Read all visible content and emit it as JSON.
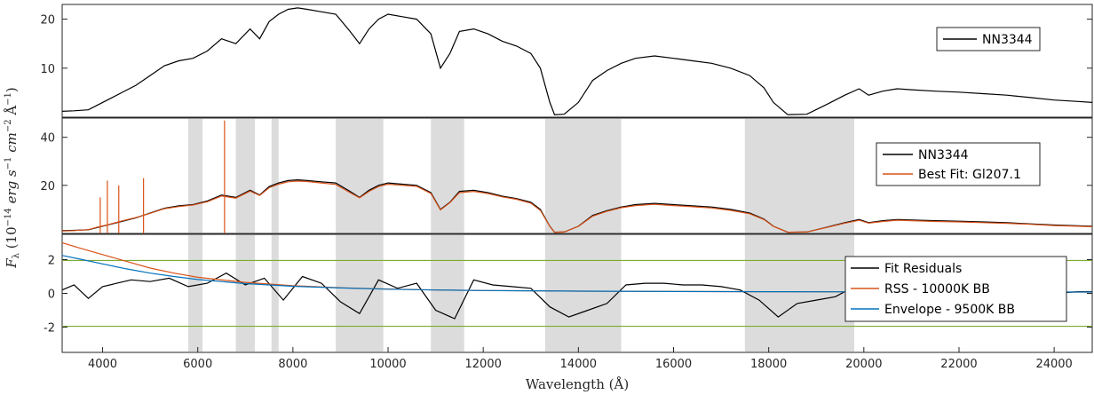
{
  "chart_data": [
    {
      "type": "line",
      "panel": "top",
      "xlim": [
        3150,
        24800
      ],
      "ylim": [
        0,
        23
      ],
      "yticks": [
        10,
        20
      ],
      "series": [
        {
          "name": "NN3344",
          "color": "#000000",
          "x": [
            3150,
            3400,
            3700,
            3900,
            4100,
            4400,
            4700,
            5000,
            5300,
            5600,
            5900,
            6200,
            6500,
            6800,
            7100,
            7300,
            7500,
            7700,
            7900,
            8100,
            8300,
            8600,
            8900,
            9200,
            9400,
            9600,
            9800,
            10000,
            10300,
            10600,
            10900,
            11100,
            11300,
            11500,
            11800,
            12100,
            12400,
            12700,
            13000,
            13200,
            13400,
            13500,
            13700,
            14000,
            14300,
            14600,
            14900,
            15200,
            15600,
            16000,
            16400,
            16800,
            17200,
            17600,
            17900,
            18100,
            18400,
            18800,
            19200,
            19600,
            19900,
            20100,
            20400,
            20700,
            21000,
            21500,
            22000,
            22500,
            23000,
            23500,
            24000,
            24500,
            24800
          ],
          "y": [
            1.2,
            1.3,
            1.5,
            2.5,
            3.5,
            5.0,
            6.5,
            8.5,
            10.5,
            11.5,
            12.0,
            13.5,
            16.0,
            15.0,
            18.0,
            16.0,
            19.5,
            21.0,
            22.0,
            22.3,
            22.0,
            21.5,
            21.0,
            17.5,
            15.0,
            18.0,
            20.0,
            21.0,
            20.5,
            20.0,
            17.0,
            10.0,
            13.0,
            17.5,
            18.0,
            17.0,
            15.5,
            14.5,
            13.0,
            10.0,
            3.0,
            0.5,
            0.6,
            3.0,
            7.5,
            9.5,
            11.0,
            12.0,
            12.5,
            12.0,
            11.5,
            11.0,
            10.0,
            8.5,
            6.0,
            3.0,
            0.5,
            0.6,
            2.5,
            4.5,
            5.8,
            4.5,
            5.3,
            5.8,
            5.6,
            5.3,
            5.1,
            4.8,
            4.5,
            4.0,
            3.5,
            3.2,
            3.0
          ]
        }
      ],
      "legend": {
        "entries": [
          "NN3344"
        ],
        "placement": "top-right"
      }
    },
    {
      "type": "line",
      "panel": "middle",
      "xlim": [
        3150,
        24800
      ],
      "ylim": [
        0,
        48
      ],
      "yticks": [
        20,
        40
      ],
      "ylabel": "F_λ (10^-14 erg s^-1 cm^-2 Å^-1)",
      "series": [
        {
          "name": "NN3344",
          "color": "#000000",
          "x": [
            3150,
            3400,
            3700,
            3900,
            4100,
            4400,
            4700,
            5000,
            5300,
            5600,
            5900,
            6200,
            6500,
            6800,
            7100,
            7300,
            7500,
            7700,
            7900,
            8100,
            8300,
            8600,
            8900,
            9200,
            9400,
            9600,
            9800,
            10000,
            10300,
            10600,
            10900,
            11100,
            11300,
            11500,
            11800,
            12100,
            12400,
            12700,
            13000,
            13200,
            13400,
            13500,
            13700,
            14000,
            14300,
            14600,
            14900,
            15200,
            15600,
            16000,
            16400,
            16800,
            17200,
            17600,
            17900,
            18100,
            18400,
            18800,
            19200,
            19600,
            19900,
            20100,
            20400,
            20700,
            21000,
            21500,
            22000,
            22500,
            23000,
            23500,
            24000,
            24500,
            24800
          ],
          "y": [
            1.2,
            1.3,
            1.5,
            2.5,
            3.5,
            5.0,
            6.5,
            8.5,
            10.5,
            11.5,
            12.0,
            13.5,
            16.0,
            15.0,
            18.0,
            16.0,
            19.5,
            21.0,
            22.0,
            22.3,
            22.0,
            21.5,
            21.0,
            17.5,
            15.0,
            18.0,
            20.0,
            21.0,
            20.5,
            20.0,
            17.0,
            10.0,
            13.0,
            17.5,
            18.0,
            17.0,
            15.5,
            14.5,
            13.0,
            10.0,
            3.0,
            0.5,
            0.6,
            3.0,
            7.5,
            9.5,
            11.0,
            12.0,
            12.5,
            12.0,
            11.5,
            11.0,
            10.0,
            8.5,
            6.0,
            3.0,
            0.5,
            0.6,
            2.5,
            4.5,
            5.8,
            4.5,
            5.3,
            5.8,
            5.6,
            5.3,
            5.1,
            4.8,
            4.5,
            4.0,
            3.5,
            3.2,
            3.0
          ]
        },
        {
          "name": "Best Fit: Gl207.1",
          "color": "#D95319",
          "x": [
            3150,
            3400,
            3700,
            3900,
            4100,
            4400,
            4700,
            5000,
            5300,
            5600,
            5900,
            6200,
            6500,
            6800,
            7100,
            7300,
            7500,
            7700,
            7900,
            8100,
            8300,
            8600,
            8900,
            9200,
            9400,
            9600,
            9800,
            10000,
            10300,
            10600,
            10900,
            11100,
            11300,
            11500,
            11800,
            12100,
            12400,
            12700,
            13000,
            13200,
            13400,
            13500,
            13700,
            14000,
            14300,
            14600,
            14900,
            15200,
            15600,
            16000,
            16400,
            16800,
            17200,
            17600,
            17900,
            18100,
            18400,
            18800,
            19200,
            19600,
            19900,
            20100,
            20400,
            20700,
            21000,
            21500,
            22000,
            22500,
            23000,
            23500,
            24000,
            24500,
            24800
          ],
          "y": [
            1.0,
            1.2,
            1.6,
            2.7,
            3.6,
            5.2,
            6.6,
            8.4,
            10.3,
            11.2,
            11.8,
            13.2,
            15.6,
            14.7,
            17.6,
            15.8,
            19.0,
            20.5,
            21.5,
            21.8,
            21.6,
            21.0,
            20.4,
            17.0,
            14.8,
            17.5,
            19.5,
            20.5,
            20.0,
            19.6,
            16.6,
            9.8,
            12.8,
            17.0,
            17.5,
            16.6,
            15.2,
            14.2,
            12.6,
            9.6,
            2.9,
            0.5,
            0.6,
            2.9,
            7.2,
            9.2,
            10.7,
            11.6,
            12.1,
            11.6,
            11.1,
            10.6,
            9.6,
            8.2,
            5.8,
            2.9,
            0.5,
            0.6,
            2.4,
            4.3,
            5.5,
            4.3,
            5.0,
            5.5,
            5.3,
            5.0,
            4.8,
            4.5,
            4.2,
            3.8,
            3.3,
            3.0,
            2.8
          ]
        }
      ],
      "emission_lines": [
        {
          "x": 3950,
          "y": 15
        },
        {
          "x": 4100,
          "y": 22
        },
        {
          "x": 4340,
          "y": 20
        },
        {
          "x": 4860,
          "y": 23
        },
        {
          "x": 6563,
          "y": 47
        }
      ],
      "legend": {
        "entries": [
          "NN3344",
          "Best Fit: Gl207.1"
        ],
        "placement": "top-right"
      }
    },
    {
      "type": "line",
      "panel": "bottom",
      "xlim": [
        3150,
        24800
      ],
      "ylim": [
        -3.5,
        3.5
      ],
      "yticks": [
        -2,
        0,
        2
      ],
      "xticks": [
        4000,
        6000,
        8000,
        10000,
        12000,
        14000,
        16000,
        18000,
        20000,
        22000,
        24000
      ],
      "xlabel": "Wavelength (Å)",
      "hlines": [
        -1.95,
        1.95
      ],
      "series": [
        {
          "name": "Fit Residuals",
          "color": "#000000",
          "x": [
            3150,
            3400,
            3700,
            4000,
            4300,
            4600,
            5000,
            5400,
            5800,
            6200,
            6600,
            7000,
            7400,
            7800,
            8200,
            8600,
            9000,
            9400,
            9800,
            10200,
            10600,
            11000,
            11400,
            11800,
            12200,
            12600,
            13000,
            13400,
            13800,
            14200,
            14600,
            15000,
            15400,
            15800,
            16200,
            16600,
            17000,
            17400,
            17800,
            18200,
            18600,
            19000,
            19400,
            19800,
            20200,
            20600,
            21000,
            21500,
            22000,
            22500,
            23000,
            23500,
            24000,
            24500,
            24800
          ],
          "y": [
            0.2,
            0.5,
            -0.3,
            0.4,
            0.6,
            0.8,
            0.7,
            0.9,
            0.4,
            0.6,
            1.2,
            0.5,
            0.9,
            -0.4,
            1.0,
            0.6,
            -0.5,
            -1.2,
            0.8,
            0.3,
            0.6,
            -1.0,
            -1.5,
            0.8,
            0.5,
            0.4,
            0.3,
            -0.8,
            -1.4,
            -1.0,
            -0.6,
            0.5,
            0.6,
            0.6,
            0.5,
            0.5,
            0.4,
            0.2,
            -0.4,
            -1.4,
            -0.6,
            -0.4,
            -0.2,
            0.4,
            0.3,
            0.1,
            0.3,
            0.2,
            0.2,
            0.1,
            0.0,
            0.1,
            0.0,
            0.1,
            0.1
          ]
        },
        {
          "name": "RSS - 10000K BB",
          "color": "#D95319",
          "x": [
            3150,
            3500,
            4000,
            4500,
            5000,
            5500,
            6000,
            7000,
            8000,
            9000,
            10000,
            11000,
            12000,
            13000,
            14000,
            16000,
            18000,
            20000,
            22000,
            24000,
            24800
          ],
          "y": [
            3.0,
            2.7,
            2.3,
            1.9,
            1.5,
            1.2,
            0.95,
            0.65,
            0.45,
            0.33,
            0.26,
            0.2,
            0.17,
            0.15,
            0.13,
            0.11,
            0.1,
            0.09,
            0.085,
            0.08,
            0.08
          ]
        },
        {
          "name": "Envelope - 9500K BB",
          "color": "#0072BD",
          "x": [
            3150,
            3500,
            4000,
            4500,
            5000,
            5500,
            6000,
            7000,
            8000,
            9000,
            10000,
            11000,
            12000,
            13000,
            14000,
            16000,
            18000,
            20000,
            22000,
            24000,
            24800
          ],
          "y": [
            2.25,
            2.05,
            1.75,
            1.45,
            1.2,
            1.0,
            0.82,
            0.58,
            0.42,
            0.32,
            0.25,
            0.2,
            0.17,
            0.15,
            0.13,
            0.11,
            0.1,
            0.09,
            0.085,
            0.08,
            0.08
          ]
        }
      ],
      "legend": {
        "entries": [
          "Fit Residuals",
          "RSS - 10000K BB",
          "Envelope - 9500K BB"
        ],
        "placement": "right"
      }
    }
  ],
  "colors": {
    "telluric_mask": "#808080",
    "threshold_lines": "#77AC30",
    "axes": "#262626"
  },
  "telluric_bands": [
    [
      5800,
      6100
    ],
    [
      6800,
      7200
    ],
    [
      7550,
      7700
    ],
    [
      8900,
      9900
    ],
    [
      10900,
      11600
    ],
    [
      13300,
      14900
    ],
    [
      17500,
      19800
    ]
  ]
}
